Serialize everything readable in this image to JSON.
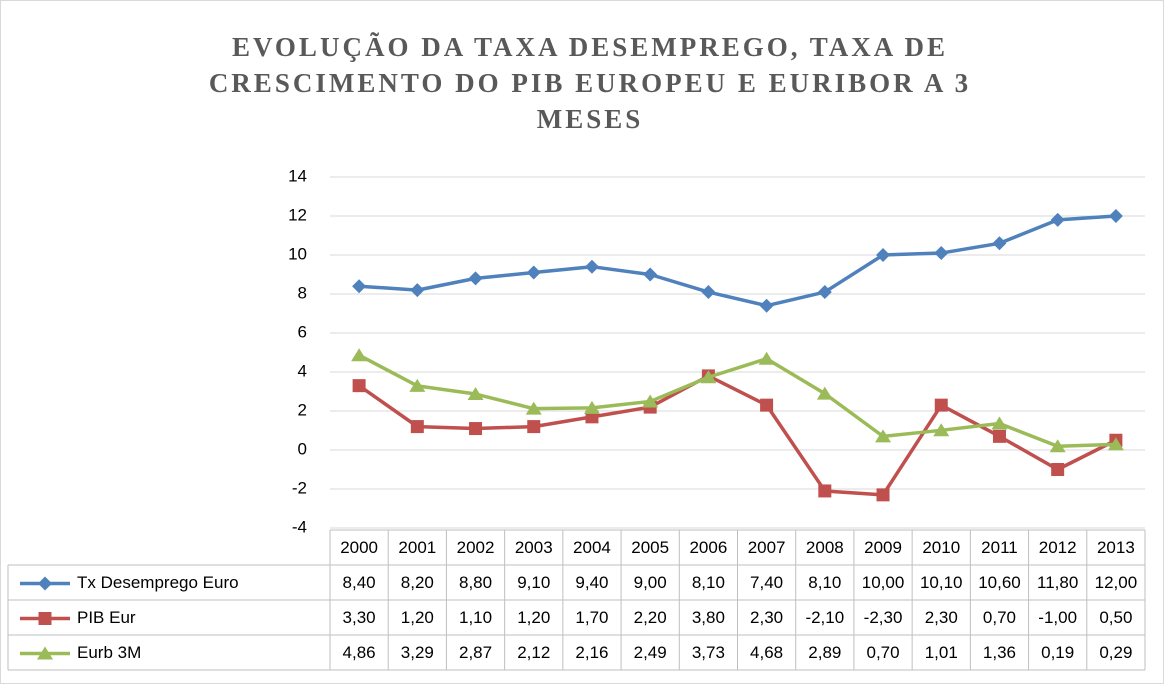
{
  "chart_data": {
    "type": "line",
    "title": [
      "EVOLUÇÃO DA TAXA DESEMPREGO, TAXA DE",
      "CRESCIMENTO DO PIB EUROPEU E EURIBOR A 3",
      "MESES"
    ],
    "categories": [
      "2000",
      "2001",
      "2002",
      "2003",
      "2004",
      "2005",
      "2006",
      "2007",
      "2008",
      "2009",
      "2010",
      "2011",
      "2012",
      "2013"
    ],
    "ylim": [
      -4,
      14
    ],
    "yticks": [
      -4,
      -2,
      0,
      2,
      4,
      6,
      8,
      10,
      12,
      14
    ],
    "grid": true,
    "series": [
      {
        "name": "Tx Desemprego Euro",
        "color": "#4f81bd",
        "marker": "diamond",
        "values": [
          8.4,
          8.2,
          8.8,
          9.1,
          9.4,
          9.0,
          8.1,
          7.4,
          8.1,
          10.0,
          10.1,
          10.6,
          11.8,
          12.0
        ],
        "value_labels": [
          "8,40",
          "8,20",
          "8,80",
          "9,10",
          "9,40",
          "9,00",
          "8,10",
          "7,40",
          "8,10",
          "10,00",
          "10,10",
          "10,60",
          "11,80",
          "12,00"
        ]
      },
      {
        "name": "PIB Eur",
        "color": "#c0504d",
        "marker": "square",
        "values": [
          3.3,
          1.2,
          1.1,
          1.2,
          1.7,
          2.2,
          3.8,
          2.3,
          -2.1,
          -2.3,
          2.3,
          0.7,
          -1.0,
          0.5
        ],
        "value_labels": [
          "3,30",
          "1,20",
          "1,10",
          "1,20",
          "1,70",
          "2,20",
          "3,80",
          "2,30",
          "-2,10",
          "-2,30",
          "2,30",
          "0,70",
          "-1,00",
          "0,50"
        ]
      },
      {
        "name": "Eurb 3M",
        "color": "#9bbb59",
        "marker": "triangle",
        "values": [
          4.86,
          3.29,
          2.87,
          2.12,
          2.16,
          2.49,
          3.73,
          4.68,
          2.89,
          0.7,
          1.01,
          1.36,
          0.19,
          0.29
        ],
        "value_labels": [
          "4,86",
          "3,29",
          "2,87",
          "2,12",
          "2,16",
          "2,49",
          "3,73",
          "4,68",
          "2,89",
          "0,70",
          "1,01",
          "1,36",
          "0,19",
          "0,29"
        ]
      }
    ]
  }
}
